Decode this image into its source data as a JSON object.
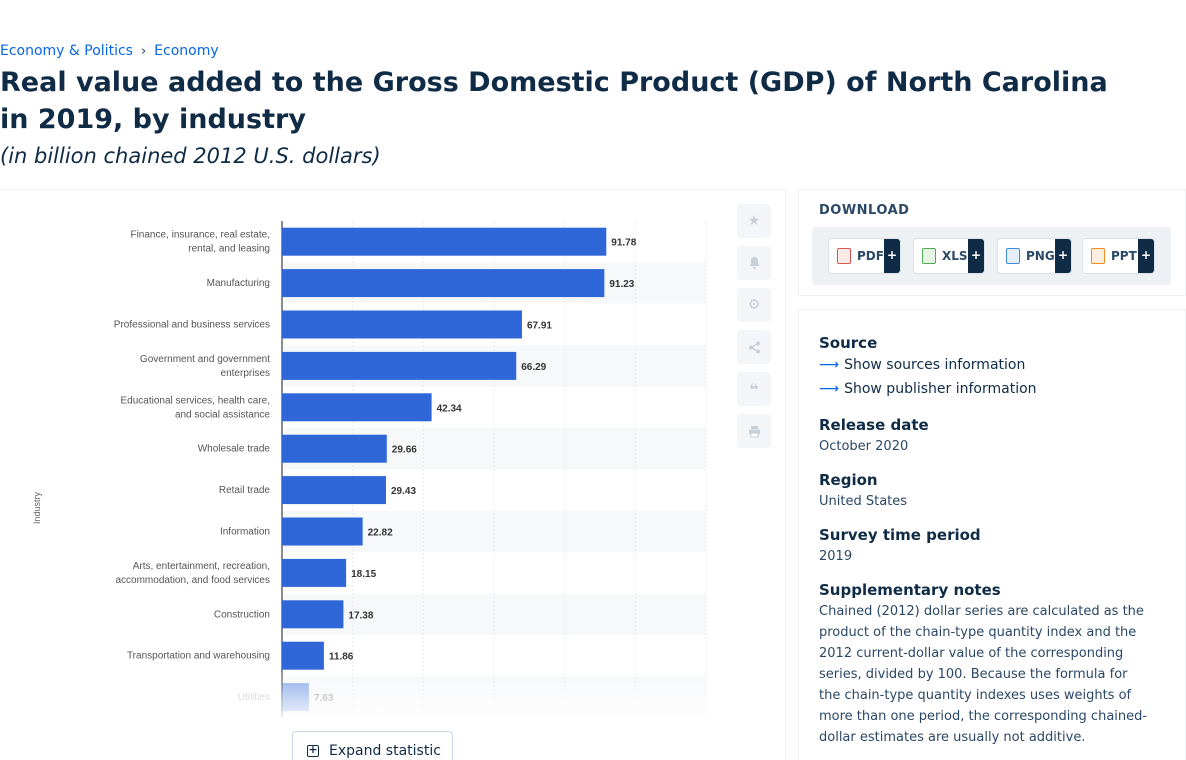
{
  "breadcrumb": {
    "item1": "Economy & Politics",
    "separator": "›",
    "item2": "Economy"
  },
  "title": "Real value added to the Gross Domestic Product (GDP) of North Carolina in 2019, by industry",
  "subtitle": "(in billion chained 2012 U.S. dollars)",
  "chart_data": {
    "type": "bar",
    "orientation": "horizontal",
    "ylabel": "Industry",
    "categories": [
      "Finance, insurance, real estate, rental, and leasing",
      "Manufacturing",
      "Professional and business services",
      "Government and government enterprises",
      "Educational services, health care, and social assistance",
      "Wholesale trade",
      "Retail trade",
      "Information",
      "Arts, entertainment, recreation, accommodation, and food services",
      "Construction",
      "Transportation and warehousing",
      "Utilities"
    ],
    "values": [
      91.78,
      91.23,
      67.91,
      66.29,
      42.34,
      29.66,
      29.43,
      22.82,
      18.15,
      17.38,
      11.86,
      7.63
    ],
    "xlim": [
      0,
      120
    ],
    "bar_color": "#2f67d8",
    "grid": true
  },
  "tools": {
    "favorite_icon": "star-icon",
    "notify_icon": "bell-icon",
    "settings_icon": "gear-icon",
    "share_icon": "share-icon",
    "cite_icon": "quote-icon",
    "print_icon": "print-icon"
  },
  "expand_button": {
    "label": "Expand statistic"
  },
  "download": {
    "title": "DOWNLOAD",
    "pdf": "PDF",
    "xls": "XLS",
    "png": "PNG",
    "ppt": "PPT",
    "plus": "+"
  },
  "info": {
    "source_label": "Source",
    "show_sources": "Show sources information",
    "show_publisher": "Show publisher information",
    "release_label": "Release date",
    "release_value": "October 2020",
    "region_label": "Region",
    "region_value": "United States",
    "survey_label": "Survey time period",
    "survey_value": "2019",
    "notes_label": "Supplementary notes",
    "notes_value": "Chained (2012) dollar series are calculated as the product of the chain-type quantity index and the 2012 current-dollar value of the corresponding series, divided by 100. Because the formula for the chain-type quantity indexes uses weights of more than one period, the corresponding chained-dollar estimates are usually not additive."
  }
}
